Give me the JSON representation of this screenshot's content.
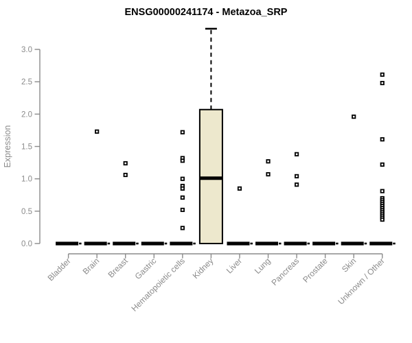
{
  "chart_data": {
    "type": "boxplot",
    "title": "ENSG00000241174 - Metazoa_SRP",
    "ylabel": "Expression",
    "xlabel": "",
    "ylim": [
      0.0,
      3.4
    ],
    "yticks": [
      0.0,
      0.5,
      1.0,
      1.5,
      2.0,
      2.5,
      3.0
    ],
    "grid": false,
    "legend": false,
    "categories": [
      "Bladder",
      "Brain",
      "Breast",
      "Gastric",
      "Hematopoietic cells",
      "Kidney",
      "Liver",
      "Lung",
      "Pancreas",
      "Prostate",
      "Skin",
      "Unknown / Other"
    ],
    "series": [
      {
        "name": "Bladder",
        "box": {
          "min": 0,
          "q1": 0,
          "median": 0,
          "q3": 0,
          "whisker_high": 0
        },
        "outliers": []
      },
      {
        "name": "Brain",
        "box": {
          "min": 0,
          "q1": 0,
          "median": 0,
          "q3": 0,
          "whisker_high": 0
        },
        "outliers": [
          1.73
        ]
      },
      {
        "name": "Breast",
        "box": {
          "min": 0,
          "q1": 0,
          "median": 0,
          "q3": 0,
          "whisker_high": 0
        },
        "outliers": [
          1.24,
          1.06
        ]
      },
      {
        "name": "Gastric",
        "box": {
          "min": 0,
          "q1": 0,
          "median": 0,
          "q3": 0,
          "whisker_high": 0
        },
        "outliers": []
      },
      {
        "name": "Hematopoietic cells",
        "box": {
          "min": 0,
          "q1": 0,
          "median": 0,
          "q3": 0,
          "whisker_high": 0
        },
        "outliers": [
          1.72,
          1.32,
          1.28,
          1.0,
          0.89,
          0.85,
          0.71,
          0.52,
          0.24
        ]
      },
      {
        "name": "Kidney",
        "box": {
          "min": 0,
          "q1": 0,
          "median": 1.01,
          "q3": 2.07,
          "whisker_high": 3.32
        },
        "outliers": []
      },
      {
        "name": "Liver",
        "box": {
          "min": 0,
          "q1": 0,
          "median": 0,
          "q3": 0,
          "whisker_high": 0
        },
        "outliers": [
          0.85
        ]
      },
      {
        "name": "Lung",
        "box": {
          "min": 0,
          "q1": 0,
          "median": 0,
          "q3": 0,
          "whisker_high": 0
        },
        "outliers": [
          1.27,
          1.07
        ]
      },
      {
        "name": "Pancreas",
        "box": {
          "min": 0,
          "q1": 0,
          "median": 0,
          "q3": 0,
          "whisker_high": 0
        },
        "outliers": [
          1.38,
          1.04,
          0.91
        ]
      },
      {
        "name": "Prostate",
        "box": {
          "min": 0,
          "q1": 0,
          "median": 0,
          "q3": 0,
          "whisker_high": 0
        },
        "outliers": []
      },
      {
        "name": "Skin",
        "box": {
          "min": 0,
          "q1": 0,
          "median": 0,
          "q3": 0,
          "whisker_high": 0
        },
        "outliers": [
          1.96
        ]
      },
      {
        "name": "Unknown / Other",
        "box": {
          "min": 0,
          "q1": 0,
          "median": 0,
          "q3": 0,
          "whisker_high": 0
        },
        "outliers": [
          2.61,
          2.48,
          1.61,
          1.22,
          0.81,
          0.7,
          0.67,
          0.64,
          0.61,
          0.58,
          0.55,
          0.52,
          0.49,
          0.46,
          0.43,
          0.4,
          0.37
        ]
      }
    ],
    "colors": {
      "box_fill": "#EDE8CD",
      "box_border": "#000000",
      "median": "#000000",
      "collapsed_bar": "#000000",
      "axis": "#8a8a8a",
      "tick_label": "#8a8a8a",
      "title": "#000000",
      "outlier_stroke": "#000000",
      "outlier_fill": "#ffffff",
      "background": "#ffffff"
    }
  }
}
